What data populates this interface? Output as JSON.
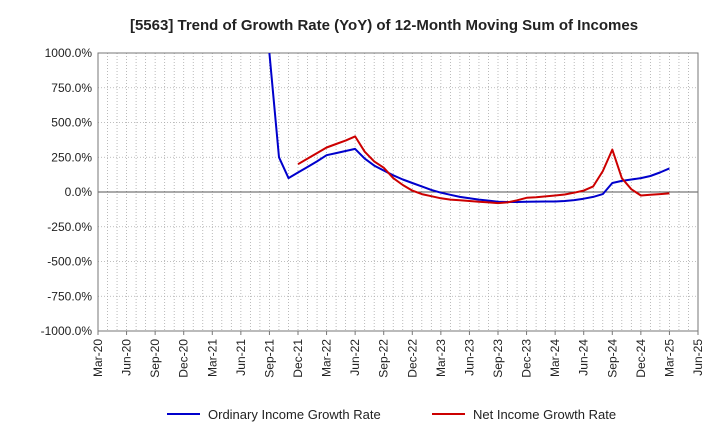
{
  "chart_data": {
    "type": "line",
    "title": "[5563]  Trend of Growth Rate (YoY) of 12-Month Moving Sum of Incomes",
    "xlabel": "",
    "ylabel": "",
    "x_ticks": [
      "Mar-20",
      "Jun-20",
      "Sep-20",
      "Dec-20",
      "Mar-21",
      "Jun-21",
      "Sep-21",
      "Dec-21",
      "Mar-22",
      "Jun-22",
      "Sep-22",
      "Dec-22",
      "Mar-23",
      "Jun-23",
      "Sep-23",
      "Dec-23",
      "Mar-24",
      "Jun-24",
      "Sep-24",
      "Dec-24",
      "Mar-25",
      "Jun-25"
    ],
    "y_ticks": [
      "1000.0%",
      "750.0%",
      "500.0%",
      "250.0%",
      "0.0%",
      "-250.0%",
      "-500.0%",
      "-750.0%",
      "-1000.0%"
    ],
    "ylim": [
      -1000,
      1000
    ],
    "grid": true,
    "legend_position": "bottom",
    "series": [
      {
        "name": "Ordinary Income Growth Rate",
        "color": "#0000cc",
        "points": [
          [
            "Sep-21",
            1000
          ],
          [
            "Oct-21",
            250
          ],
          [
            "Nov-21",
            100
          ],
          [
            "Dec-21",
            140
          ],
          [
            "Jan-22",
            180
          ],
          [
            "Feb-22",
            220
          ],
          [
            "Mar-22",
            265
          ],
          [
            "Apr-22",
            280
          ],
          [
            "May-22",
            295
          ],
          [
            "Jun-22",
            310
          ],
          [
            "Jul-22",
            240
          ],
          [
            "Aug-22",
            190
          ],
          [
            "Sep-22",
            155
          ],
          [
            "Oct-22",
            120
          ],
          [
            "Nov-22",
            90
          ],
          [
            "Dec-22",
            65
          ],
          [
            "Jan-23",
            40
          ],
          [
            "Feb-23",
            15
          ],
          [
            "Mar-23",
            -5
          ],
          [
            "Apr-23",
            -20
          ],
          [
            "May-23",
            -35
          ],
          [
            "Jun-23",
            -45
          ],
          [
            "Jul-23",
            -55
          ],
          [
            "Aug-23",
            -62
          ],
          [
            "Sep-23",
            -70
          ],
          [
            "Oct-23",
            -72
          ],
          [
            "Nov-23",
            -72
          ],
          [
            "Dec-23",
            -70
          ],
          [
            "Jan-24",
            -69
          ],
          [
            "Feb-24",
            -68
          ],
          [
            "Mar-24",
            -68
          ],
          [
            "Apr-24",
            -65
          ],
          [
            "May-24",
            -58
          ],
          [
            "Jun-24",
            -48
          ],
          [
            "Jul-24",
            -35
          ],
          [
            "Aug-24",
            -15
          ],
          [
            "Sep-24",
            65
          ],
          [
            "Oct-24",
            80
          ],
          [
            "Nov-24",
            90
          ],
          [
            "Dec-24",
            100
          ],
          [
            "Jan-25",
            115
          ],
          [
            "Feb-25",
            140
          ],
          [
            "Mar-25",
            170
          ]
        ]
      },
      {
        "name": "Net Income Growth Rate",
        "color": "#cc0000",
        "points": [
          [
            "Dec-21",
            200
          ],
          [
            "Jan-22",
            240
          ],
          [
            "Feb-22",
            280
          ],
          [
            "Mar-22",
            320
          ],
          [
            "Apr-22",
            345
          ],
          [
            "May-22",
            370
          ],
          [
            "Jun-22",
            400
          ],
          [
            "Jul-22",
            290
          ],
          [
            "Aug-22",
            220
          ],
          [
            "Sep-22",
            175
          ],
          [
            "Oct-22",
            100
          ],
          [
            "Nov-22",
            50
          ],
          [
            "Dec-22",
            10
          ],
          [
            "Jan-23",
            -15
          ],
          [
            "Feb-23",
            -30
          ],
          [
            "Mar-23",
            -45
          ],
          [
            "Apr-23",
            -55
          ],
          [
            "May-23",
            -60
          ],
          [
            "Jun-23",
            -65
          ],
          [
            "Jul-23",
            -70
          ],
          [
            "Aug-23",
            -75
          ],
          [
            "Sep-23",
            -80
          ],
          [
            "Oct-23",
            -75
          ],
          [
            "Nov-23",
            -60
          ],
          [
            "Dec-23",
            -42
          ],
          [
            "Jan-24",
            -38
          ],
          [
            "Feb-24",
            -32
          ],
          [
            "Mar-24",
            -25
          ],
          [
            "Apr-24",
            -18
          ],
          [
            "May-24",
            -5
          ],
          [
            "Jun-24",
            10
          ],
          [
            "Jul-24",
            40
          ],
          [
            "Aug-24",
            150
          ],
          [
            "Sep-24",
            305
          ],
          [
            "Oct-24",
            100
          ],
          [
            "Nov-24",
            20
          ],
          [
            "Dec-24",
            -25
          ],
          [
            "Jan-25",
            -20
          ],
          [
            "Feb-25",
            -15
          ],
          [
            "Mar-25",
            -10
          ]
        ]
      }
    ]
  }
}
